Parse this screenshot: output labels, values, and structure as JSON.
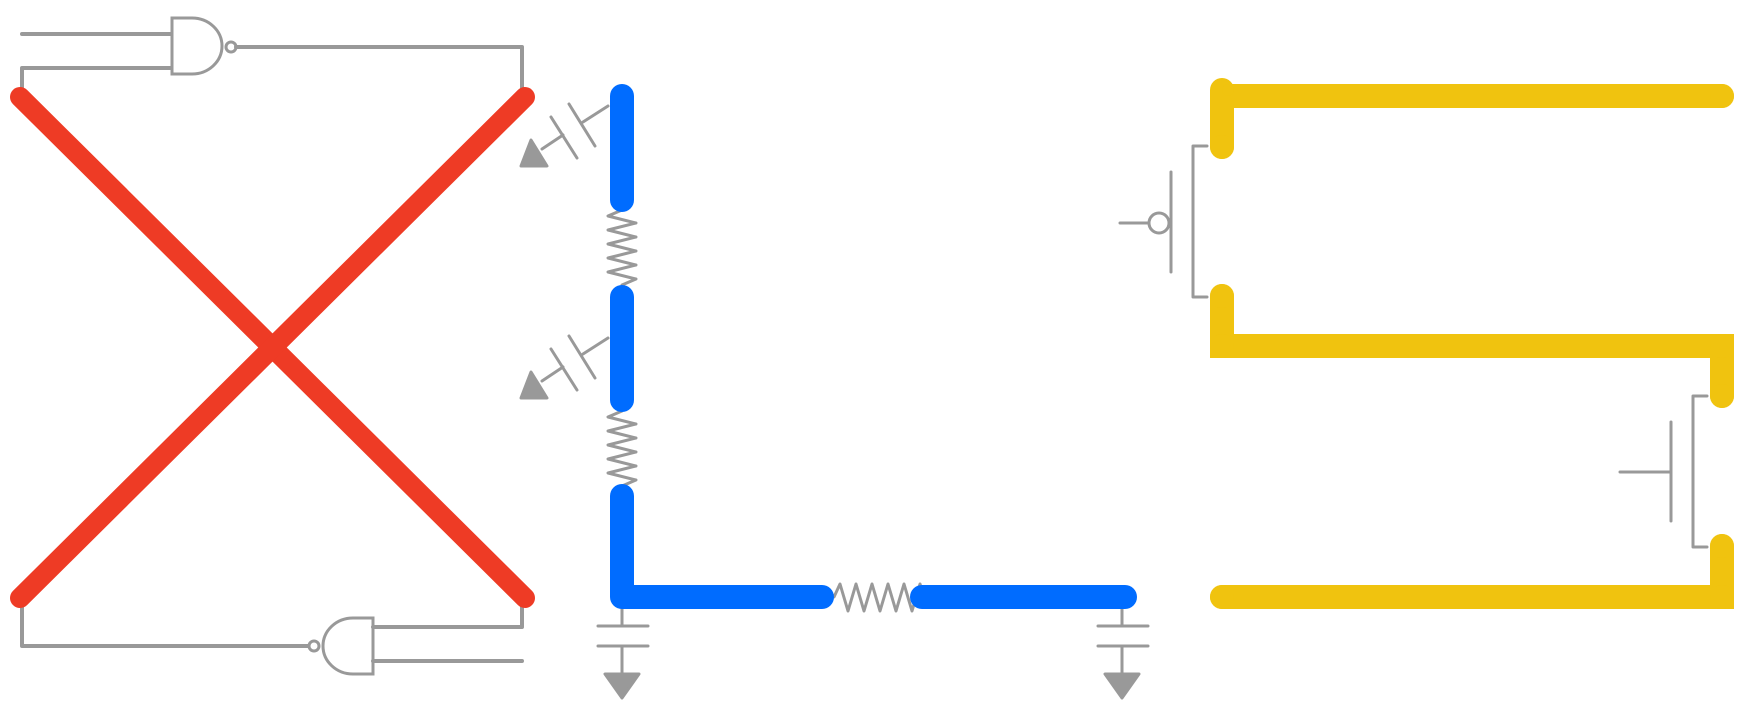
{
  "diagram": {
    "panels": [
      "crossing-wires",
      "rc-wire",
      "transistor-wires"
    ],
    "colors": {
      "gray": "#999999",
      "red": "#ee3b25",
      "blue": "#006cff",
      "yellow": "#f0c30f",
      "background": "#ffffff"
    },
    "symbols": [
      "nand-gate-icon",
      "capacitor-icon",
      "resistor-icon",
      "ground-icon",
      "pmos-transistor-icon",
      "nmos-transistor-icon"
    ]
  }
}
